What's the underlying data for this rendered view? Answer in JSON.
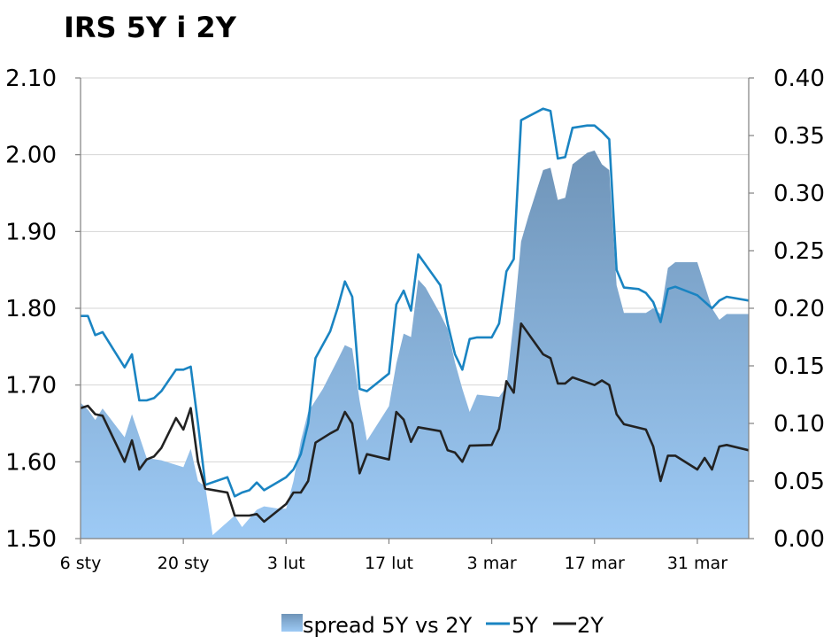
{
  "chart_data": {
    "type": "line",
    "title": "IRS 5Y i 2Y",
    "x_tick_labels": [
      "6 sty",
      "20 sty",
      "3 lut",
      "17 lut",
      "3 mar",
      "17 mar",
      "31 mar"
    ],
    "x_tick_positions": [
      0,
      14,
      28,
      42,
      56,
      70,
      84
    ],
    "x_range": [
      0,
      91
    ],
    "y_left": {
      "ticks": [
        "1.50",
        "1.60",
        "1.70",
        "1.80",
        "1.90",
        "2.00",
        "2.10"
      ],
      "range": [
        1.5,
        2.1
      ]
    },
    "y_right": {
      "ticks": [
        "0.00",
        "0.05",
        "0.10",
        "0.15",
        "0.20",
        "0.25",
        "0.30",
        "0.35",
        "0.40"
      ],
      "range": [
        0,
        0.4
      ]
    },
    "grid": "horizontal",
    "legend_position": "bottom",
    "series": [
      {
        "name": "spread 5Y vs 2Y",
        "type": "area",
        "axis": "right",
        "color_top": "#6f94b8",
        "color_bottom": "#9dcaf5",
        "points": [
          [
            0,
            0.118
          ],
          [
            1,
            0.112
          ],
          [
            2,
            0.103
          ],
          [
            3,
            0.113
          ],
          [
            6,
            0.088
          ],
          [
            7,
            0.108
          ],
          [
            9,
            0.07
          ],
          [
            11,
            0.068
          ],
          [
            14,
            0.062
          ],
          [
            15,
            0.078
          ],
          [
            16,
            0.05
          ],
          [
            17,
            0.045
          ],
          [
            18,
            0.003
          ],
          [
            21,
            0.02
          ],
          [
            22,
            0.01
          ],
          [
            24,
            0.025
          ],
          [
            25,
            0.028
          ],
          [
            27,
            0.026
          ],
          [
            28,
            0.026
          ],
          [
            29,
            0.05
          ],
          [
            30,
            0.085
          ],
          [
            31,
            0.11
          ],
          [
            33,
            0.13
          ],
          [
            35,
            0.155
          ],
          [
            36,
            0.168
          ],
          [
            37,
            0.165
          ],
          [
            38,
            0.12
          ],
          [
            39,
            0.085
          ],
          [
            42,
            0.115
          ],
          [
            43,
            0.152
          ],
          [
            44,
            0.178
          ],
          [
            45,
            0.175
          ],
          [
            46,
            0.225
          ],
          [
            47,
            0.218
          ],
          [
            49,
            0.195
          ],
          [
            50,
            0.182
          ],
          [
            51,
            0.153
          ],
          [
            52,
            0.13
          ],
          [
            53,
            0.11
          ],
          [
            54,
            0.125
          ],
          [
            57,
            0.123
          ],
          [
            58,
            0.132
          ],
          [
            59,
            0.19
          ],
          [
            60,
            0.258
          ],
          [
            61,
            0.28
          ],
          [
            63,
            0.32
          ],
          [
            64,
            0.322
          ],
          [
            65,
            0.294
          ],
          [
            66,
            0.296
          ],
          [
            67,
            0.325
          ],
          [
            69,
            0.335
          ],
          [
            70,
            0.337
          ],
          [
            71,
            0.325
          ],
          [
            72,
            0.32
          ],
          [
            73,
            0.22
          ],
          [
            74,
            0.196
          ],
          [
            77,
            0.196
          ],
          [
            78,
            0.2
          ],
          [
            79,
            0.195
          ],
          [
            80,
            0.235
          ],
          [
            81,
            0.24
          ],
          [
            84,
            0.24
          ],
          [
            86,
            0.2
          ],
          [
            87,
            0.19
          ],
          [
            88,
            0.195
          ],
          [
            91,
            0.195
          ]
        ]
      },
      {
        "name": "5Y",
        "type": "line",
        "axis": "left",
        "color": "#1a84c2",
        "points": [
          [
            0,
            1.79
          ],
          [
            1,
            1.79
          ],
          [
            2,
            1.765
          ],
          [
            3,
            1.769
          ],
          [
            6,
            1.723
          ],
          [
            7,
            1.74
          ],
          [
            8,
            1.68
          ],
          [
            9,
            1.68
          ],
          [
            10,
            1.683
          ],
          [
            11,
            1.692
          ],
          [
            13,
            1.72
          ],
          [
            14,
            1.72
          ],
          [
            15,
            1.724
          ],
          [
            16,
            1.65
          ],
          [
            17,
            1.57
          ],
          [
            20,
            1.58
          ],
          [
            21,
            1.555
          ],
          [
            22,
            1.56
          ],
          [
            23,
            1.563
          ],
          [
            24,
            1.573
          ],
          [
            25,
            1.563
          ],
          [
            28,
            1.58
          ],
          [
            29,
            1.59
          ],
          [
            30,
            1.61
          ],
          [
            31,
            1.65
          ],
          [
            32,
            1.735
          ],
          [
            34,
            1.77
          ],
          [
            35,
            1.8
          ],
          [
            36,
            1.835
          ],
          [
            37,
            1.815
          ],
          [
            38,
            1.695
          ],
          [
            39,
            1.692
          ],
          [
            42,
            1.715
          ],
          [
            43,
            1.805
          ],
          [
            44,
            1.823
          ],
          [
            45,
            1.797
          ],
          [
            46,
            1.87
          ],
          [
            49,
            1.83
          ],
          [
            50,
            1.78
          ],
          [
            51,
            1.74
          ],
          [
            52,
            1.72
          ],
          [
            53,
            1.76
          ],
          [
            54,
            1.762
          ],
          [
            56,
            1.762
          ],
          [
            57,
            1.78
          ],
          [
            58,
            1.848
          ],
          [
            59,
            1.864
          ],
          [
            60,
            2.045
          ],
          [
            63,
            2.06
          ],
          [
            64,
            2.057
          ],
          [
            65,
            1.995
          ],
          [
            66,
            1.997
          ],
          [
            67,
            2.035
          ],
          [
            69,
            2.038
          ],
          [
            70,
            2.038
          ],
          [
            71,
            2.03
          ],
          [
            72,
            2.02
          ],
          [
            73,
            1.85
          ],
          [
            74,
            1.827
          ],
          [
            76,
            1.825
          ],
          [
            77,
            1.82
          ],
          [
            78,
            1.808
          ],
          [
            79,
            1.782
          ],
          [
            80,
            1.825
          ],
          [
            81,
            1.828
          ],
          [
            84,
            1.817
          ],
          [
            86,
            1.8
          ],
          [
            87,
            1.81
          ],
          [
            88,
            1.815
          ],
          [
            91,
            1.81
          ]
        ]
      },
      {
        "name": "2Y",
        "type": "line",
        "axis": "left",
        "color": "#222222",
        "points": [
          [
            0,
            1.67
          ],
          [
            1,
            1.673
          ],
          [
            2,
            1.662
          ],
          [
            3,
            1.66
          ],
          [
            6,
            1.6
          ],
          [
            7,
            1.628
          ],
          [
            8,
            1.59
          ],
          [
            9,
            1.603
          ],
          [
            10,
            1.607
          ],
          [
            11,
            1.618
          ],
          [
            13,
            1.657
          ],
          [
            14,
            1.642
          ],
          [
            15,
            1.67
          ],
          [
            16,
            1.6
          ],
          [
            17,
            1.565
          ],
          [
            20,
            1.56
          ],
          [
            21,
            1.53
          ],
          [
            22,
            1.53
          ],
          [
            23,
            1.53
          ],
          [
            24,
            1.532
          ],
          [
            25,
            1.522
          ],
          [
            28,
            1.545
          ],
          [
            29,
            1.56
          ],
          [
            30,
            1.56
          ],
          [
            31,
            1.575
          ],
          [
            32,
            1.625
          ],
          [
            34,
            1.637
          ],
          [
            35,
            1.642
          ],
          [
            36,
            1.665
          ],
          [
            37,
            1.65
          ],
          [
            38,
            1.585
          ],
          [
            39,
            1.61
          ],
          [
            42,
            1.603
          ],
          [
            43,
            1.665
          ],
          [
            44,
            1.655
          ],
          [
            45,
            1.626
          ],
          [
            46,
            1.645
          ],
          [
            49,
            1.64
          ],
          [
            50,
            1.615
          ],
          [
            51,
            1.612
          ],
          [
            52,
            1.6
          ],
          [
            53,
            1.621
          ],
          [
            56,
            1.622
          ],
          [
            57,
            1.643
          ],
          [
            58,
            1.705
          ],
          [
            59,
            1.69
          ],
          [
            60,
            1.78
          ],
          [
            63,
            1.74
          ],
          [
            64,
            1.735
          ],
          [
            65,
            1.702
          ],
          [
            66,
            1.702
          ],
          [
            67,
            1.71
          ],
          [
            70,
            1.7
          ],
          [
            71,
            1.706
          ],
          [
            72,
            1.7
          ],
          [
            73,
            1.662
          ],
          [
            74,
            1.649
          ],
          [
            77,
            1.642
          ],
          [
            78,
            1.62
          ],
          [
            79,
            1.575
          ],
          [
            80,
            1.608
          ],
          [
            81,
            1.608
          ],
          [
            84,
            1.59
          ],
          [
            85,
            1.605
          ],
          [
            86,
            1.59
          ],
          [
            87,
            1.62
          ],
          [
            88,
            1.622
          ],
          [
            91,
            1.615
          ]
        ]
      }
    ]
  }
}
